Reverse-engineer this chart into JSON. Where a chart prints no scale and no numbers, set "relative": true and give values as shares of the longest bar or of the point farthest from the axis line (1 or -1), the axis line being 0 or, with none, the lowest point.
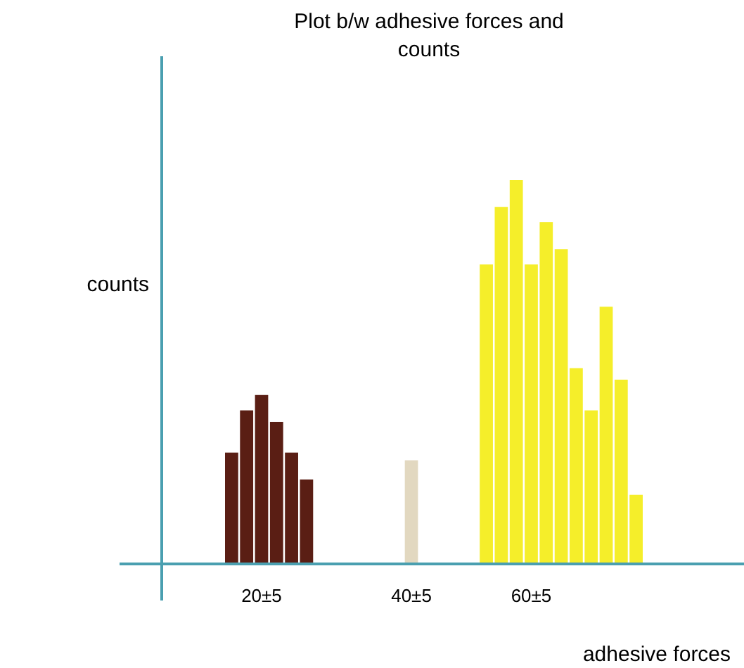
{
  "chart_data": {
    "type": "bar",
    "title": "Plot b/w adhesive forces and counts",
    "xlabel": "adhesive forces",
    "ylabel": "counts",
    "relative": true,
    "categories": [
      null,
      null,
      "20±5",
      null,
      null,
      null,
      null,
      null,
      null,
      null,
      null,
      null,
      "40±5",
      null,
      null,
      null,
      null,
      null,
      null,
      null,
      "60±5",
      null,
      null,
      null,
      null,
      null,
      null,
      null
    ],
    "series": [
      {
        "color": "#5a1e14",
        "values": [
          0.29,
          0.4,
          0.44,
          0.37,
          0.29,
          0.22,
          null,
          null,
          null,
          null,
          null,
          null,
          null,
          null,
          null,
          null,
          null,
          null,
          null,
          null,
          null,
          null,
          null,
          null,
          null,
          null,
          null,
          null
        ]
      },
      {
        "color": "#e2d8c0",
        "values": [
          null,
          null,
          null,
          null,
          null,
          null,
          null,
          null,
          null,
          null,
          null,
          null,
          0.27,
          null,
          null,
          null,
          null,
          null,
          null,
          null,
          null,
          null,
          null,
          null,
          null,
          null,
          null,
          null
        ]
      },
      {
        "color": "#f5ee2a",
        "values": [
          null,
          null,
          null,
          null,
          null,
          null,
          null,
          null,
          null,
          null,
          null,
          null,
          null,
          null,
          null,
          null,
          null,
          0.78,
          0.93,
          1,
          0.78,
          0.89,
          0.82,
          0.51,
          0.4,
          0.67,
          0.48,
          0.18
        ]
      }
    ]
  }
}
